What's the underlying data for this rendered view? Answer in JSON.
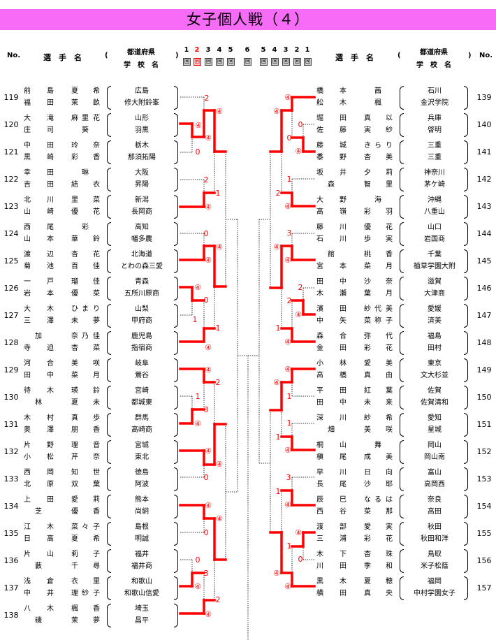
{
  "title": "女子個人戦（４）",
  "header": {
    "no": "No.",
    "player": "選　手　名",
    "paren_open": "(",
    "paren_close": ")",
    "prefecture": "都道府県",
    "school": "学　校　名",
    "rounds": [
      "1",
      "2",
      "3",
      "4",
      "5",
      "6",
      "5",
      "4",
      "3",
      "2",
      "1"
    ],
    "round_unit": "回",
    "current_round_color": "#ff0000"
  },
  "colors": {
    "title_bar": "#f76cf7",
    "win_line": "#ff0000"
  },
  "left": [
    {
      "no": "119",
      "p1": [
        "前",
        "",
        "島",
        "夏",
        "",
        "希"
      ],
      "p2": [
        "福",
        "",
        "田",
        "茉",
        "",
        "畝"
      ],
      "pref": "広島",
      "school": "修大附鈴峯"
    },
    {
      "no": "120",
      "p1": [
        "大",
        "",
        "滝",
        "麻",
        "里",
        "花"
      ],
      "p2": [
        "庄",
        "",
        "司",
        "",
        "葵",
        ""
      ],
      "pref": "山形",
      "school": "羽黒"
    },
    {
      "no": "121",
      "p1": [
        "中",
        "",
        "田",
        "玲",
        "",
        "奈"
      ],
      "p2": [
        "黒",
        "",
        "崎",
        "彩",
        "",
        "香"
      ],
      "pref": "栃木",
      "school": "那須拓陽"
    },
    {
      "no": "122",
      "p1": [
        "幸",
        "",
        "田",
        "",
        "琳",
        ""
      ],
      "p2": [
        "吉",
        "",
        "田",
        "結",
        "",
        "衣"
      ],
      "pref": "大阪",
      "school": "昇陽"
    },
    {
      "no": "123",
      "p1": [
        "北",
        "",
        "川",
        "里",
        "",
        "菜"
      ],
      "p2": [
        "山",
        "",
        "崎",
        "優",
        "",
        "花"
      ],
      "pref": "新潟",
      "school": "長岡商"
    },
    {
      "no": "124",
      "p1": [
        "西",
        "",
        "尾",
        "",
        "彩",
        ""
      ],
      "p2": [
        "山",
        "",
        "本",
        "華",
        "",
        "鈴"
      ],
      "pref": "高知",
      "school": "幡多農"
    },
    {
      "no": "125",
      "p1": [
        "渡",
        "",
        "辺",
        "杏",
        "",
        "花"
      ],
      "p2": [
        "菊",
        "",
        "池",
        "百",
        "",
        "佳"
      ],
      "pref": "北海道",
      "school": "とわの森三愛"
    },
    {
      "no": "126",
      "p1": [
        "一",
        "",
        "戸",
        "瑠",
        "",
        "佳"
      ],
      "p2": [
        "岩",
        "",
        "本",
        "優",
        "",
        "菜"
      ],
      "pref": "青森",
      "school": "五所川原商"
    },
    {
      "no": "127",
      "p1": [
        "大",
        "",
        "木",
        "ひ",
        "ま",
        "り"
      ],
      "p2": [
        "三",
        "",
        "澤",
        "未",
        "",
        "夢"
      ],
      "pref": "山梨",
      "school": "甲府商"
    },
    {
      "no": "128",
      "p1": [
        "",
        "加",
        "",
        "奈",
        "乃",
        "佳"
      ],
      "p2": [
        "寺",
        "",
        "迫",
        "杏",
        "",
        "菜"
      ],
      "pref": "鹿児島",
      "school": "指宿商"
    },
    {
      "no": "129",
      "p1": [
        "河",
        "",
        "合",
        "美",
        "",
        "咲"
      ],
      "p2": [
        "田",
        "",
        "中",
        "菜",
        "",
        "月"
      ],
      "pref": "岐阜",
      "school": "鶯谷"
    },
    {
      "no": "130",
      "p1": [
        "待",
        "",
        "木",
        "瑛",
        "",
        "鈴"
      ],
      "p2": [
        "",
        "林",
        "",
        "夏",
        "",
        "未"
      ],
      "pref": "宮崎",
      "school": "都城東"
    },
    {
      "no": "131",
      "p1": [
        "木",
        "",
        "村",
        "真",
        "",
        "歩"
      ],
      "p2": [
        "奥",
        "",
        "澤",
        "朋",
        "",
        "香"
      ],
      "pref": "群馬",
      "school": "高崎商"
    },
    {
      "no": "132",
      "p1": [
        "片",
        "",
        "野",
        "理",
        "",
        "音"
      ],
      "p2": [
        "小",
        "",
        "松",
        "芹",
        "",
        "奈"
      ],
      "pref": "宮城",
      "school": "東北"
    },
    {
      "no": "133",
      "p1": [
        "西",
        "",
        "岡",
        "知",
        "",
        "世"
      ],
      "p2": [
        "北",
        "",
        "原",
        "双",
        "",
        "葉"
      ],
      "pref": "徳島",
      "school": "阿波"
    },
    {
      "no": "134",
      "p1": [
        "上",
        "",
        "田",
        "愛",
        "",
        "莉"
      ],
      "p2": [
        "",
        "芝",
        "",
        "優",
        "",
        "香"
      ],
      "pref": "熊本",
      "school": "尚絅"
    },
    {
      "no": "135",
      "p1": [
        "江",
        "",
        "木",
        "菜",
        "々",
        "子"
      ],
      "p2": [
        "日",
        "",
        "高",
        "夏",
        "",
        "希"
      ],
      "pref": "島根",
      "school": "明誠"
    },
    {
      "no": "136",
      "p1": [
        "片",
        "",
        "山",
        "莉",
        "",
        "子"
      ],
      "p2": [
        "",
        "藪",
        "",
        "千",
        "",
        "尋"
      ],
      "pref": "福井",
      "school": "福井商"
    },
    {
      "no": "137",
      "p1": [
        "浅",
        "",
        "倉",
        "衣",
        "",
        "里"
      ],
      "p2": [
        "中",
        "",
        "井",
        "理",
        "紗",
        "子"
      ],
      "pref": "和歌山",
      "school": "和歌山信愛"
    },
    {
      "no": "138",
      "p1": [
        "八",
        "",
        "木",
        "楓",
        "",
        "香"
      ],
      "p2": [
        "",
        "磯",
        "",
        "茉",
        "",
        "夢"
      ],
      "pref": "埼玉",
      "school": "昌平"
    }
  ],
  "right": [
    {
      "no": "139",
      "p1": [
        "橋",
        "",
        "本",
        "",
        "茜",
        ""
      ],
      "p2": [
        "舩",
        "",
        "木",
        "",
        "楓",
        ""
      ],
      "pref": "石川",
      "school": "金沢学院"
    },
    {
      "no": "140",
      "p1": [
        "堀",
        "",
        "田",
        "真",
        "",
        "以"
      ],
      "p2": [
        "佐",
        "",
        "藤",
        "実",
        "",
        "紗"
      ],
      "pref": "兵庫",
      "school": "啓明"
    },
    {
      "no": "141",
      "p1": [
        "藤",
        "",
        "城",
        "き",
        "ら",
        "り"
      ],
      "p2": [
        "黍",
        "",
        "野",
        "杏",
        "",
        "美"
      ],
      "pref": "三重",
      "school": "三重"
    },
    {
      "no": "142",
      "p1": [
        "坂",
        "",
        "井",
        "夕",
        "",
        "莉"
      ],
      "p2": [
        "",
        "森",
        "",
        "智",
        "",
        "里"
      ],
      "pref": "神奈川",
      "school": "茅ケ崎"
    },
    {
      "no": "143",
      "p1": [
        "大",
        "",
        "野",
        "",
        "海",
        ""
      ],
      "p2": [
        "高",
        "",
        "嶺",
        "彩",
        "",
        "羽"
      ],
      "pref": "沖縄",
      "school": "八重山"
    },
    {
      "no": "144",
      "p1": [
        "藤",
        "",
        "川",
        "優",
        "",
        "花"
      ],
      "p2": [
        "石",
        "",
        "川",
        "歩",
        "",
        "実"
      ],
      "pref": "山口",
      "school": "岩国商"
    },
    {
      "no": "145",
      "p1": [
        "",
        "館",
        "",
        "桃",
        "",
        "香"
      ],
      "p2": [
        "宮",
        "",
        "本",
        "菜",
        "",
        "月"
      ],
      "pref": "千葉",
      "school": "植草学園大附"
    },
    {
      "no": "146",
      "p1": [
        "田",
        "",
        "中",
        "沙",
        "",
        "奈"
      ],
      "p2": [
        "木",
        "",
        "瀬",
        "葉",
        "",
        "月"
      ],
      "pref": "滋賀",
      "school": "大津商"
    },
    {
      "no": "147",
      "p1": [
        "濱",
        "",
        "田",
        "紗",
        "代",
        "美"
      ],
      "p2": [
        "中",
        "",
        "矢",
        "菜",
        "称",
        "子"
      ],
      "pref": "愛媛",
      "school": "済美"
    },
    {
      "no": "148",
      "p1": [
        "森",
        "",
        "合",
        "弥",
        "",
        "代"
      ],
      "p2": [
        "金",
        "",
        "田",
        "彩",
        "",
        "花"
      ],
      "pref": "福島",
      "school": "田村"
    },
    {
      "no": "149",
      "p1": [
        "小",
        "",
        "林",
        "愛",
        "",
        "美"
      ],
      "p2": [
        "高",
        "",
        "橋",
        "真",
        "",
        "由"
      ],
      "pref": "東京",
      "school": "文大杉並"
    },
    {
      "no": "150",
      "p1": [
        "平",
        "",
        "田",
        "紅",
        "",
        "葉"
      ],
      "p2": [
        "田",
        "",
        "中",
        "未",
        "",
        "来"
      ],
      "pref": "佐賀",
      "school": "佐賀清和"
    },
    {
      "no": "151",
      "p1": [
        "深",
        "",
        "川",
        "紗",
        "",
        "希"
      ],
      "p2": [
        "",
        "畑",
        "",
        "美",
        "",
        "咲"
      ],
      "pref": "愛知",
      "school": "星城"
    },
    {
      "no": "152",
      "p1": [
        "桐",
        "",
        "山",
        "",
        "舞",
        ""
      ],
      "p2": [
        "槇",
        "",
        "尾",
        "成",
        "",
        "美"
      ],
      "pref": "岡山",
      "school": "岡山南"
    },
    {
      "no": "153",
      "p1": [
        "早",
        "",
        "川",
        "日",
        "",
        "向"
      ],
      "p2": [
        "長",
        "",
        "尾",
        "沙",
        "",
        "耶"
      ],
      "pref": "富山",
      "school": "高岡西"
    },
    {
      "no": "154",
      "p1": [
        "辰",
        "",
        "巳",
        "な",
        "る",
        "は"
      ],
      "p2": [
        "西",
        "",
        "谷",
        "菜",
        "",
        "那"
      ],
      "pref": "奈良",
      "school": "高田"
    },
    {
      "no": "155",
      "p1": [
        "渡",
        "",
        "部",
        "愛",
        "",
        "実"
      ],
      "p2": [
        "三",
        "",
        "浦",
        "彩",
        "",
        "花"
      ],
      "pref": "秋田",
      "school": "秋田和洋"
    },
    {
      "no": "156",
      "p1": [
        "木",
        "",
        "下",
        "杏",
        "",
        "珠"
      ],
      "p2": [
        "川",
        "",
        "田",
        "季",
        "",
        "和"
      ],
      "pref": "鳥取",
      "school": "米子松蔭"
    },
    {
      "no": "157",
      "p1": [
        "黒",
        "",
        "木",
        "夏",
        "",
        "穂"
      ],
      "p2": [
        "横",
        "",
        "田",
        "真",
        "",
        "央"
      ],
      "pref": "福岡",
      "school": "中村学園女子"
    }
  ],
  "scores": {
    "left": [
      "2",
      "④",
      "④",
      "④",
      "0",
      "2",
      "1",
      "④",
      "0",
      "④",
      "④",
      "④",
      "0",
      "1",
      "1",
      "④",
      "④",
      "2",
      "1",
      "3",
      "④",
      "④",
      "④",
      "0",
      "④",
      "④",
      "0",
      "0",
      "3",
      "④",
      "2",
      "④"
    ],
    "right": [
      "④",
      "④",
      "0",
      "0",
      "④",
      "1",
      "2",
      "④",
      "3",
      "④",
      "④",
      "2",
      "2",
      "④",
      "1",
      "④",
      "④",
      "④",
      "1",
      "1",
      "1",
      "④",
      "3",
      "1",
      "④",
      "④",
      "1",
      "0",
      "④",
      "④"
    ]
  }
}
